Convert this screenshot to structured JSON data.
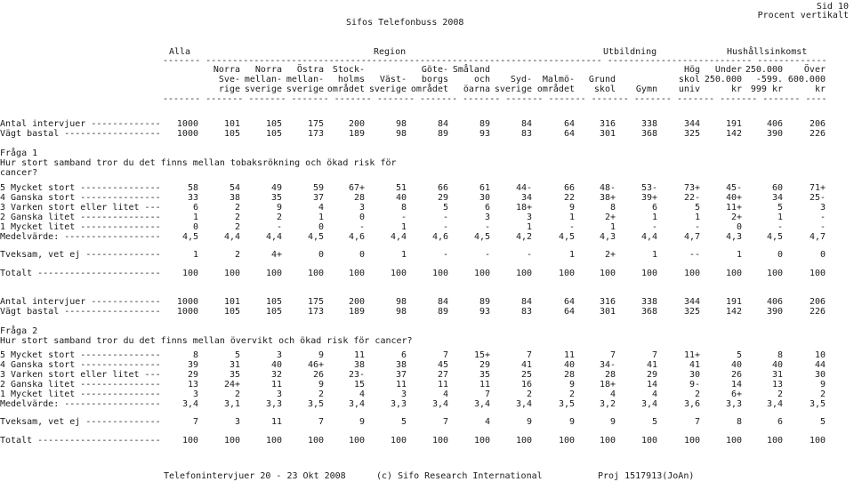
{
  "page_header": {
    "title": "Sifos Telefonbuss 2008",
    "page_number": "Sid 10",
    "subtitle": "Procent vertikalt"
  },
  "group_headers": [
    "Alla",
    "Region",
    "Utbildning",
    "Hushållsinkomst"
  ],
  "column_headers": [
    [
      "",
      "",
      "Alla"
    ],
    [
      "Norra\nSve-\nrige"
    ],
    [
      "Norra\nmellan-\nsverige"
    ],
    [
      "Östra\nmellan-\nsverige"
    ],
    [
      "Stock-\nholms\nområdet"
    ],
    [
      "\nVäst-\nsverige"
    ],
    [
      "Göte-\nborgs\nområdet"
    ],
    [
      "Småland\noch\nöarna"
    ],
    [
      "\nSyd-\nsverige"
    ],
    [
      "\nMalmö-\nområdet"
    ],
    [
      "\nGrund\nskol"
    ],
    [
      "\n\nGymn"
    ],
    [
      "Hög\nskol\nuniv"
    ],
    [
      "Under\n250.000\nkr"
    ],
    [
      "250.000\n-599.\n999 kr"
    ],
    [
      "Över\n600.000\nkr"
    ]
  ],
  "sections": [
    {
      "rows": [
        {
          "label": "Antal intervjuer -------------",
          "values": [
            "1000",
            "101",
            "105",
            "175",
            "200",
            "98",
            "84",
            "89",
            "84",
            "64",
            "316",
            "338",
            "344",
            "191",
            "406",
            "206"
          ]
        },
        {
          "label": "Vägt bastal ------------------",
          "values": [
            "1000",
            "105",
            "105",
            "173",
            "189",
            "98",
            "89",
            "93",
            "83",
            "64",
            "301",
            "368",
            "325",
            "142",
            "390",
            "226"
          ]
        }
      ]
    },
    {
      "question_label": "Fråga 1",
      "question_text": "Hur stort samband tror du det finns mellan tobaksrökning och ökad risk för\ncancer?",
      "rows": [
        {
          "label": "5 Mycket stort ---------------",
          "values": [
            "58",
            "54",
            "49",
            "59",
            "67+",
            "51",
            "66",
            "61",
            "44-",
            "66",
            "48-",
            "53-",
            "73+",
            "45-",
            "60",
            "71+"
          ]
        },
        {
          "label": "4 Ganska stort ---------------",
          "values": [
            "33",
            "38",
            "35",
            "37",
            "28",
            "40",
            "29",
            "30",
            "34",
            "22",
            "38+",
            "39+",
            "22-",
            "40+",
            "34",
            "25-"
          ]
        },
        {
          "label": "3 Varken stort eller litet ---",
          "values": [
            "6",
            "2",
            "9",
            "4",
            "3",
            "8",
            "5",
            "6",
            "18+",
            "9",
            "8",
            "6",
            "5",
            "11+",
            "5",
            "3"
          ]
        },
        {
          "label": "2 Ganska litet ---------------",
          "values": [
            "1",
            "2",
            "2",
            "1",
            "0",
            "-",
            "-",
            "3",
            "3",
            "1",
            "2+",
            "1",
            "1",
            "2+",
            "1",
            "-"
          ]
        },
        {
          "label": "1 Mycket litet ---------------",
          "values": [
            "0",
            "2",
            "-",
            "0",
            "-",
            "1",
            "-",
            "-",
            "1",
            "-",
            "1",
            "-",
            "-",
            "0",
            "-",
            "-"
          ]
        },
        {
          "label": "Medelvärde: ------------------",
          "values": [
            "4,5",
            "4,4",
            "4,4",
            "4,5",
            "4,6",
            "4,4",
            "4,6",
            "4,5",
            "4,2",
            "4,5",
            "4,3",
            "4,4",
            "4,7",
            "4,3",
            "4,5",
            "4,7"
          ]
        },
        {
          "label": "Tveksam, vet ej --------------",
          "values": [
            "1",
            "2",
            "4+",
            "0",
            "0",
            "1",
            "-",
            "-",
            "-",
            "1",
            "2+",
            "1",
            "--",
            "1",
            "0",
            "0"
          ]
        },
        {
          "label": "Totalt -----------------------",
          "values": [
            "100",
            "100",
            "100",
            "100",
            "100",
            "100",
            "100",
            "100",
            "100",
            "100",
            "100",
            "100",
            "100",
            "100",
            "100",
            "100"
          ]
        }
      ]
    },
    {
      "rows": [
        {
          "label": "Antal intervjuer -------------",
          "values": [
            "1000",
            "101",
            "105",
            "175",
            "200",
            "98",
            "84",
            "89",
            "84",
            "64",
            "316",
            "338",
            "344",
            "191",
            "406",
            "206"
          ]
        },
        {
          "label": "Vägt bastal ------------------",
          "values": [
            "1000",
            "105",
            "105",
            "173",
            "189",
            "98",
            "89",
            "93",
            "83",
            "64",
            "301",
            "368",
            "325",
            "142",
            "390",
            "226"
          ]
        }
      ]
    },
    {
      "question_label": "Fråga 2",
      "question_text": "Hur stort samband tror du det finns mellan övervikt och ökad risk för cancer?",
      "rows": [
        {
          "label": "5 Mycket stort ---------------",
          "values": [
            "8",
            "5",
            "3",
            "9",
            "11",
            "6",
            "7",
            "15+",
            "7",
            "11",
            "7",
            "7",
            "11+",
            "5",
            "8",
            "10"
          ]
        },
        {
          "label": "4 Ganska stort ---------------",
          "values": [
            "39",
            "31",
            "40",
            "46+",
            "38",
            "38",
            "45",
            "29",
            "41",
            "40",
            "34-",
            "41",
            "41",
            "40",
            "40",
            "44"
          ]
        },
        {
          "label": "3 Varken stort eller litet ---",
          "values": [
            "29",
            "35",
            "32",
            "26",
            "23-",
            "37",
            "27",
            "35",
            "25",
            "28",
            "28",
            "29",
            "30",
            "26",
            "31",
            "30"
          ]
        },
        {
          "label": "2 Ganska litet ---------------",
          "values": [
            "13",
            "24+",
            "11",
            "9",
            "15",
            "11",
            "11",
            "11",
            "16",
            "9",
            "18+",
            "14",
            "9-",
            "14",
            "13",
            "9"
          ]
        },
        {
          "label": "1 Mycket litet ---------------",
          "values": [
            "3",
            "2",
            "3",
            "2",
            "4",
            "3",
            "4",
            "7",
            "2",
            "2",
            "4",
            "4",
            "2",
            "6+",
            "2",
            "2"
          ]
        },
        {
          "label": "Medelvärde: ------------------",
          "values": [
            "3,4",
            "3,1",
            "3,3",
            "3,5",
            "3,4",
            "3,3",
            "3,4",
            "3,4",
            "3,4",
            "3,5",
            "3,2",
            "3,4",
            "3,6",
            "3,3",
            "3,4",
            "3,5"
          ]
        },
        {
          "label": "Tveksam, vet ej --------------",
          "values": [
            "7",
            "3",
            "11",
            "7",
            "9",
            "5",
            "7",
            "4",
            "9",
            "9",
            "9",
            "5",
            "7",
            "8",
            "6",
            "5"
          ]
        },
        {
          "label": "Totalt -----------------------",
          "values": [
            "100",
            "100",
            "100",
            "100",
            "100",
            "100",
            "100",
            "100",
            "100",
            "100",
            "100",
            "100",
            "100",
            "100",
            "100",
            "100"
          ]
        }
      ]
    }
  ],
  "footer": {
    "left": "Telefonintervjuer 20 - 23 Okt 2008",
    "center": "(c) Sifo Research International",
    "right": "Proj 1517913(JoAn)"
  }
}
